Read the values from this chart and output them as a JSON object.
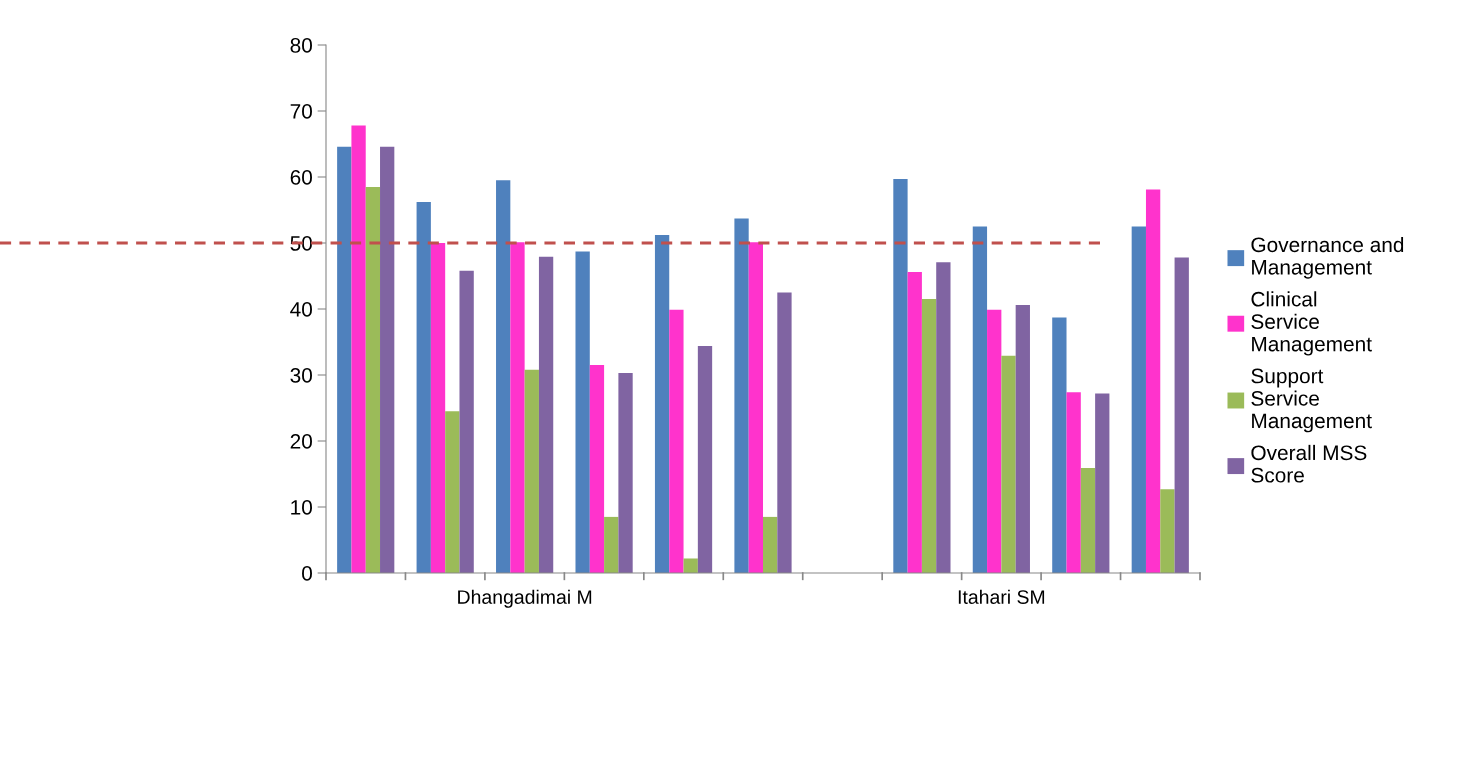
{
  "chart_data": {
    "type": "bar",
    "categories": [
      null,
      null,
      "Dhangadimai M",
      null,
      null,
      null,
      null,
      null,
      "Itahari SM",
      null,
      null
    ],
    "series": [
      {
        "name": "Governance and Management",
        "color": "#4f81bd",
        "values": [
          64.6,
          56.2,
          59.5,
          48.7,
          51.2,
          53.7,
          null,
          59.7,
          52.5,
          38.7,
          52.5
        ]
      },
      {
        "name": "Clinical Service Management",
        "color": "#ff33cc",
        "values": [
          67.8,
          50.0,
          50.1,
          31.5,
          39.9,
          50.1,
          null,
          45.6,
          39.9,
          27.4,
          58.1
        ]
      },
      {
        "name": "Support Service Management",
        "color": "#9bbb59",
        "values": [
          58.5,
          24.5,
          30.8,
          8.5,
          2.2,
          8.5,
          null,
          41.5,
          32.9,
          15.9,
          12.7
        ]
      },
      {
        "name": "Overall MSS Score",
        "color": "#8064a2",
        "values": [
          64.6,
          45.8,
          47.9,
          30.3,
          34.4,
          42.5,
          null,
          47.1,
          40.6,
          27.2,
          47.8
        ]
      }
    ],
    "ylim": [
      0,
      80
    ],
    "yticks": [
      0,
      10,
      20,
      30,
      40,
      50,
      60,
      70,
      80
    ],
    "ref_lines": [
      {
        "axis": "y",
        "value": 50,
        "color": "#c0504d",
        "line_style": "dashed"
      }
    ],
    "grid": false,
    "legend": "right"
  }
}
